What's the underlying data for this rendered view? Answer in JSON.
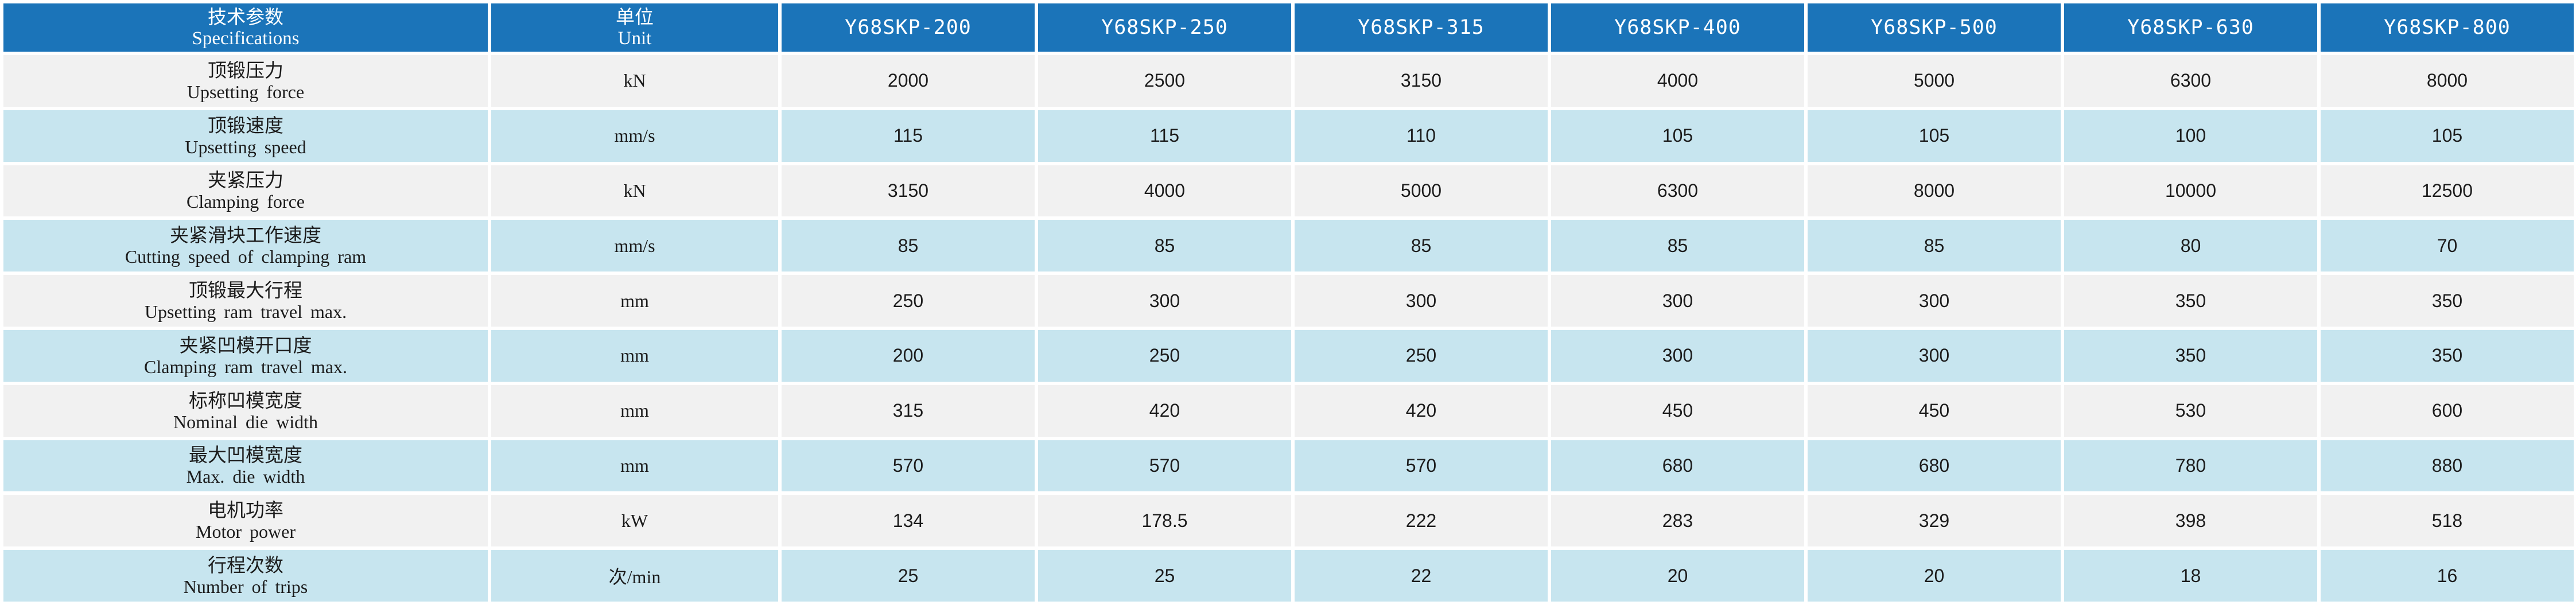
{
  "header": {
    "spec_zh": "技术参数",
    "spec_en": "Specifications",
    "unit_zh": "单位",
    "unit_en": "Unit",
    "models": [
      "Y68SKP-200",
      "Y68SKP-250",
      "Y68SKP-315",
      "Y68SKP-400",
      "Y68SKP-500",
      "Y68SKP-630",
      "Y68SKP-800"
    ]
  },
  "rows": [
    {
      "zh": "顶锻压力",
      "en": "Upsetting force",
      "unit": "kN",
      "values": [
        "2000",
        "2500",
        "3150",
        "4000",
        "5000",
        "6300",
        "8000"
      ]
    },
    {
      "zh": "顶锻速度",
      "en": "Upsetting speed",
      "unit": "mm/s",
      "values": [
        "115",
        "115",
        "110",
        "105",
        "105",
        "100",
        "105"
      ]
    },
    {
      "zh": "夹紧压力",
      "en": "Clamping force",
      "unit": "kN",
      "values": [
        "3150",
        "4000",
        "5000",
        "6300",
        "8000",
        "10000",
        "12500"
      ]
    },
    {
      "zh": "夹紧滑块工作速度",
      "en": "Cutting speed of clamping ram",
      "unit": "mm/s",
      "values": [
        "85",
        "85",
        "85",
        "85",
        "85",
        "80",
        "70"
      ]
    },
    {
      "zh": "顶锻最大行程",
      "en": "Upsetting ram travel max.",
      "unit": "mm",
      "values": [
        "250",
        "300",
        "300",
        "300",
        "300",
        "350",
        "350"
      ]
    },
    {
      "zh": "夹紧凹模开口度",
      "en": "Clamping ram travel max.",
      "unit": "mm",
      "values": [
        "200",
        "250",
        "250",
        "300",
        "300",
        "350",
        "350"
      ]
    },
    {
      "zh": "标称凹模宽度",
      "en": "Nominal die width",
      "unit": "mm",
      "values": [
        "315",
        "420",
        "420",
        "450",
        "450",
        "530",
        "600"
      ]
    },
    {
      "zh": "最大凹模宽度",
      "en": "Max. die width",
      "unit": "mm",
      "values": [
        "570",
        "570",
        "570",
        "680",
        "680",
        "780",
        "880"
      ]
    },
    {
      "zh": "电机功率",
      "en": "Motor power",
      "unit": "kW",
      "values": [
        "134",
        "178.5",
        "222",
        "283",
        "329",
        "398",
        "518"
      ]
    },
    {
      "zh": "行程次数",
      "en": "Number of trips",
      "unit": "次/min",
      "values": [
        "25",
        "25",
        "22",
        "20",
        "20",
        "18",
        "16"
      ]
    }
  ],
  "colors": {
    "header_bg": "#1b74b9",
    "row_light": "#f1f1f1",
    "row_blue": "#c7e5ef",
    "text": "#1c1c1c"
  }
}
